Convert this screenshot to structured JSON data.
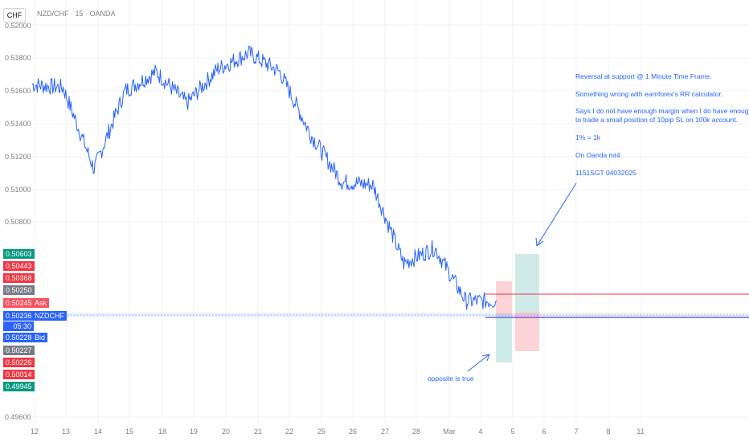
{
  "header": {
    "currency_badge": "CHF",
    "symbol_title": "NZD/CHF · 15 · OANDA"
  },
  "price_axis": {
    "labels": [
      "0.52000",
      "0.51800",
      "0.51600",
      "0.51400",
      "0.51200",
      "0.51000",
      "0.50800",
      "0.49600"
    ]
  },
  "time_axis": {
    "labels": [
      "12",
      "13",
      "14",
      "15",
      "18",
      "19",
      "20",
      "21",
      "22",
      "25",
      "26",
      "27",
      "28",
      "Mar",
      "4",
      "5",
      "6",
      "7",
      "8",
      "11"
    ]
  },
  "price_labels": {
    "p1": "0.50603",
    "p2": "0.50443",
    "p3": "0.50368",
    "p4": "0.50250",
    "ask_price": "0.50245",
    "ask_tag": "Ask",
    "last_price": "0.50236",
    "last_tag": "NZDCHF",
    "countdown": "05:30",
    "bid_price": "0.50228",
    "bid_tag": "Bid",
    "p5": "0.50227",
    "p6": "0.50226",
    "p7": "0.50014",
    "p8": "0.49945"
  },
  "annotations": {
    "note_line1": "Reversal at support @ 1 Minute Time Frame.",
    "note_line2": "Something wrong with earnforex's RR calculator.",
    "note_line3": "Says I do not have enough margin when I do have enough,",
    "note_line4": "to trade a small position of 10pip SL on 100k account.",
    "note_line5": "1% = 1k",
    "note_line6": "On Oanda mt4",
    "note_line7": "1151SGT 04032025",
    "bottom_note": "opposite is true"
  },
  "colors": {
    "line": "#2962ff",
    "profit": "#26a69a",
    "loss": "#f23645",
    "neutral": "#787b86"
  },
  "chart_data": {
    "type": "line",
    "title": "NZD/CHF · 15 · OANDA",
    "x": [
      "12",
      "13",
      "14",
      "15",
      "18",
      "19",
      "20",
      "21",
      "22",
      "25",
      "26",
      "27",
      "28",
      "Mar",
      "4",
      "5"
    ],
    "series": [
      {
        "name": "",
        "values": [
          0.5162,
          0.516,
          0.5108,
          0.5158,
          0.517,
          0.515,
          0.5172,
          0.5182,
          0.517,
          0.513,
          0.51,
          0.5098,
          0.5048,
          0.5058,
          0.5024,
          0.5024
        ]
      }
    ],
    "ylim": [
      0.495,
      0.52
    ],
    "grid": true
  }
}
